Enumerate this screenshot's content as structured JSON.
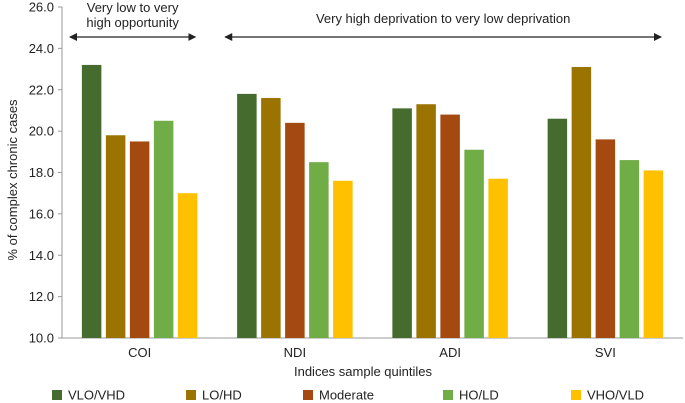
{
  "chart_data": {
    "type": "bar",
    "title": "",
    "xlabel": "Indices sample quintiles",
    "ylabel": "% of complex chronic cases",
    "ylim": [
      10.0,
      26.0
    ],
    "yticks": [
      "10.0",
      "12.0",
      "14.0",
      "16.0",
      "18.0",
      "20.0",
      "22.0",
      "24.0",
      "26.0"
    ],
    "categories": [
      "COI",
      "NDI",
      "ADI",
      "SVI"
    ],
    "series": [
      {
        "name": "VLO/VHD",
        "color": "#456b2e",
        "values": [
          23.2,
          21.8,
          21.1,
          20.6
        ]
      },
      {
        "name": "LO/HD",
        "color": "#9a7300",
        "values": [
          19.8,
          21.6,
          21.3,
          23.1
        ]
      },
      {
        "name": "Moderate",
        "color": "#a4490f",
        "values": [
          19.5,
          20.4,
          20.8,
          19.6
        ]
      },
      {
        "name": "HO/LD",
        "color": "#70ad47",
        "values": [
          20.5,
          18.5,
          19.1,
          18.6
        ]
      },
      {
        "name": "VHO/VLD",
        "color": "#ffc000",
        "values": [
          17.0,
          17.6,
          17.7,
          18.1
        ]
      }
    ],
    "legend_position": "bottom",
    "annotations": [
      {
        "text_lines": [
          "Very low to very",
          "high opportunity"
        ],
        "span": [
          "COI"
        ]
      },
      {
        "text_lines": [
          "Very high deprivation to very low deprivation"
        ],
        "span": [
          "NDI",
          "ADI",
          "SVI"
        ]
      }
    ]
  }
}
